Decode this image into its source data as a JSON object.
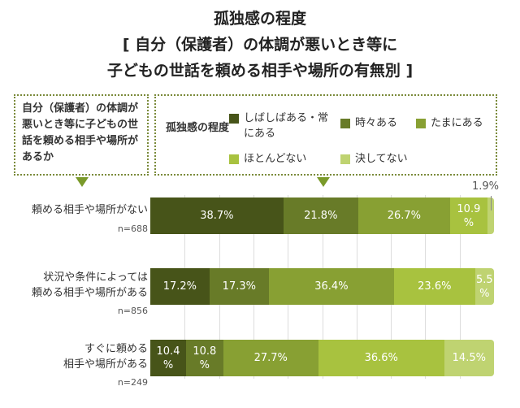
{
  "chart_data": {
    "type": "bar",
    "orientation": "horizontal-stacked-100",
    "title": [
      "孤独感の程度",
      "[ 自分（保護者）の体調が悪いとき等に",
      "子どもの世話を頼める相手や場所の有無別 ]"
    ],
    "row_header": "自分（保護者）の体調が悪いとき等に子どもの世話を頼める相手や場所があるか",
    "legend_title": "孤独感の程度",
    "legend_placement": "top",
    "categories": [
      {
        "label": "頼める相手や場所がない",
        "n": "n=688"
      },
      {
        "label": "状況や条件によっては頼める相手や場所がある",
        "n": "n=856"
      },
      {
        "label": "すぐに頼める相手や場所がある",
        "n": "n=249"
      }
    ],
    "series": [
      {
        "name": "しばしばある・常にある",
        "color": "#475419",
        "values": [
          38.7,
          17.2,
          10.4
        ]
      },
      {
        "name": "時々ある",
        "color": "#687b28",
        "values": [
          21.8,
          17.3,
          10.8
        ]
      },
      {
        "name": "たまにある",
        "color": "#88a033",
        "values": [
          26.7,
          36.4,
          27.7
        ]
      },
      {
        "name": "ほとんどない",
        "color": "#a8c23f",
        "values": [
          10.9,
          23.6,
          36.6
        ]
      },
      {
        "name": "決してない",
        "color": "#bfd371",
        "values": [
          1.9,
          5.5,
          14.5
        ]
      }
    ],
    "data_labels": [
      [
        "38.7%",
        "21.8%",
        "26.7%",
        "10.9\n%",
        "1.9%"
      ],
      [
        "17.2%",
        "17.3%",
        "36.4%",
        "23.6%",
        "5.5\n%"
      ],
      [
        "10.4\n%",
        "10.8\n%",
        "27.7%",
        "36.6%",
        "14.5%"
      ]
    ],
    "xlim": [
      0,
      100
    ],
    "grid": true
  }
}
